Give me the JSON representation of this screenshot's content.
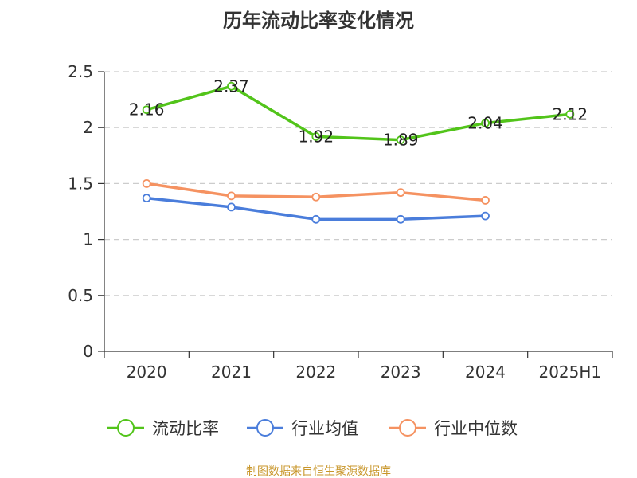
{
  "chart_data": {
    "type": "line",
    "title": "历年流动比率变化情况",
    "categories": [
      "2020",
      "2021",
      "2022",
      "2023",
      "2024",
      "2025H1"
    ],
    "y_ticks": [
      "0",
      "0.5",
      "1",
      "1.5",
      "2",
      "2.5"
    ],
    "ylim": [
      0,
      2.5
    ],
    "grid": true,
    "legend_position": "bottom",
    "series": [
      {
        "name": "流动比率",
        "color": "#52c41a",
        "values": [
          2.16,
          2.37,
          1.92,
          1.89,
          2.04,
          2.12
        ],
        "labels": [
          "2.16",
          "2.37",
          "1.92",
          "1.89",
          "2.04",
          "2.12"
        ]
      },
      {
        "name": "行业均值",
        "color": "#4a7ddb",
        "values": [
          1.37,
          1.29,
          1.18,
          1.18,
          1.21,
          null
        ]
      },
      {
        "name": "行业中位数",
        "color": "#f59261",
        "values": [
          1.5,
          1.39,
          1.38,
          1.42,
          1.35,
          null
        ]
      }
    ]
  },
  "source_text": "制图数据来自恒生聚源数据库",
  "source_color": "#c8962a"
}
